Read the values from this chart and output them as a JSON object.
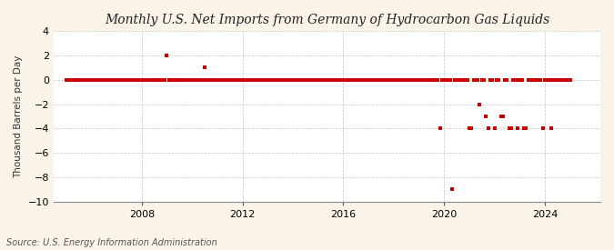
{
  "title": "U.S. Net Imports from Germany of Hydrocarbon Gas Liquids",
  "title_prefix": "Monthly ",
  "ylabel": "Thousand Barrels per Day",
  "source": "Source: U.S. Energy Information Administration",
  "background_color": "#faf3e8",
  "plot_background_color": "#ffffff",
  "marker_color": "#cc0000",
  "ylim": [
    -10,
    4
  ],
  "yticks": [
    -10,
    -8,
    -6,
    -4,
    -2,
    0,
    2,
    4
  ],
  "xlim_start": 2004.5,
  "xlim_end": 2026.2,
  "xticks": [
    2008,
    2012,
    2016,
    2020,
    2024
  ],
  "grid_color": "#aaaaaa",
  "title_fontsize": 10,
  "label_fontsize": 7.5,
  "tick_fontsize": 8,
  "source_fontsize": 7,
  "data_points": [
    [
      2005.0,
      0
    ],
    [
      2005.083,
      0
    ],
    [
      2005.167,
      0
    ],
    [
      2005.25,
      0
    ],
    [
      2005.333,
      0
    ],
    [
      2005.417,
      0
    ],
    [
      2005.5,
      0
    ],
    [
      2005.583,
      0
    ],
    [
      2005.667,
      0
    ],
    [
      2005.75,
      0
    ],
    [
      2005.833,
      0
    ],
    [
      2005.917,
      0
    ],
    [
      2006.0,
      0
    ],
    [
      2006.083,
      0
    ],
    [
      2006.167,
      0
    ],
    [
      2006.25,
      0
    ],
    [
      2006.333,
      0
    ],
    [
      2006.417,
      0
    ],
    [
      2006.5,
      0
    ],
    [
      2006.583,
      0
    ],
    [
      2006.667,
      0
    ],
    [
      2006.75,
      0
    ],
    [
      2006.833,
      0
    ],
    [
      2006.917,
      0
    ],
    [
      2007.0,
      0
    ],
    [
      2007.083,
      0
    ],
    [
      2007.167,
      0
    ],
    [
      2007.25,
      0
    ],
    [
      2007.333,
      0
    ],
    [
      2007.417,
      0
    ],
    [
      2007.5,
      0
    ],
    [
      2007.583,
      0
    ],
    [
      2007.667,
      0
    ],
    [
      2007.75,
      0
    ],
    [
      2007.833,
      0
    ],
    [
      2007.917,
      0
    ],
    [
      2008.0,
      0
    ],
    [
      2008.083,
      0
    ],
    [
      2008.167,
      0
    ],
    [
      2008.25,
      0
    ],
    [
      2008.333,
      0
    ],
    [
      2008.417,
      0
    ],
    [
      2008.5,
      0
    ],
    [
      2008.583,
      0
    ],
    [
      2008.667,
      0
    ],
    [
      2008.75,
      0
    ],
    [
      2008.833,
      0
    ],
    [
      2008.917,
      0
    ],
    [
      2009.0,
      2
    ],
    [
      2009.083,
      0
    ],
    [
      2009.167,
      0
    ],
    [
      2009.25,
      0
    ],
    [
      2009.333,
      0
    ],
    [
      2009.417,
      0
    ],
    [
      2009.5,
      0
    ],
    [
      2009.583,
      0
    ],
    [
      2009.667,
      0
    ],
    [
      2009.75,
      0
    ],
    [
      2009.833,
      0
    ],
    [
      2009.917,
      0
    ],
    [
      2010.0,
      0
    ],
    [
      2010.083,
      0
    ],
    [
      2010.167,
      0
    ],
    [
      2010.25,
      0
    ],
    [
      2010.333,
      0
    ],
    [
      2010.417,
      0
    ],
    [
      2010.5,
      1
    ],
    [
      2010.583,
      0
    ],
    [
      2010.667,
      0
    ],
    [
      2010.75,
      0
    ],
    [
      2010.833,
      0
    ],
    [
      2010.917,
      0
    ],
    [
      2011.0,
      0
    ],
    [
      2011.083,
      0
    ],
    [
      2011.167,
      0
    ],
    [
      2011.25,
      0
    ],
    [
      2011.333,
      0
    ],
    [
      2011.417,
      0
    ],
    [
      2011.5,
      0
    ],
    [
      2011.583,
      0
    ],
    [
      2011.667,
      0
    ],
    [
      2011.75,
      0
    ],
    [
      2011.833,
      0
    ],
    [
      2011.917,
      0
    ],
    [
      2012.0,
      0
    ],
    [
      2012.083,
      0
    ],
    [
      2012.167,
      0
    ],
    [
      2012.25,
      0
    ],
    [
      2012.333,
      0
    ],
    [
      2012.417,
      0
    ],
    [
      2012.5,
      0
    ],
    [
      2012.583,
      0
    ],
    [
      2012.667,
      0
    ],
    [
      2012.75,
      0
    ],
    [
      2012.833,
      0
    ],
    [
      2012.917,
      0
    ],
    [
      2013.0,
      0
    ],
    [
      2013.083,
      0
    ],
    [
      2013.167,
      0
    ],
    [
      2013.25,
      0
    ],
    [
      2013.333,
      0
    ],
    [
      2013.417,
      0
    ],
    [
      2013.5,
      0
    ],
    [
      2013.583,
      0
    ],
    [
      2013.667,
      0
    ],
    [
      2013.75,
      0
    ],
    [
      2013.833,
      0
    ],
    [
      2013.917,
      0
    ],
    [
      2014.0,
      0
    ],
    [
      2014.083,
      0
    ],
    [
      2014.167,
      0
    ],
    [
      2014.25,
      0
    ],
    [
      2014.333,
      0
    ],
    [
      2014.417,
      0
    ],
    [
      2014.5,
      0
    ],
    [
      2014.583,
      0
    ],
    [
      2014.667,
      0
    ],
    [
      2014.75,
      0
    ],
    [
      2014.833,
      0
    ],
    [
      2014.917,
      0
    ],
    [
      2015.0,
      0
    ],
    [
      2015.083,
      0
    ],
    [
      2015.167,
      0
    ],
    [
      2015.25,
      0
    ],
    [
      2015.333,
      0
    ],
    [
      2015.417,
      0
    ],
    [
      2015.5,
      0
    ],
    [
      2015.583,
      0
    ],
    [
      2015.667,
      0
    ],
    [
      2015.75,
      0
    ],
    [
      2015.833,
      0
    ],
    [
      2015.917,
      0
    ],
    [
      2016.0,
      0
    ],
    [
      2016.083,
      0
    ],
    [
      2016.167,
      0
    ],
    [
      2016.25,
      0
    ],
    [
      2016.333,
      0
    ],
    [
      2016.417,
      0
    ],
    [
      2016.5,
      0
    ],
    [
      2016.583,
      0
    ],
    [
      2016.667,
      0
    ],
    [
      2016.75,
      0
    ],
    [
      2016.833,
      0
    ],
    [
      2016.917,
      0
    ],
    [
      2017.0,
      0
    ],
    [
      2017.083,
      0
    ],
    [
      2017.167,
      0
    ],
    [
      2017.25,
      0
    ],
    [
      2017.333,
      0
    ],
    [
      2017.417,
      0
    ],
    [
      2017.5,
      0
    ],
    [
      2017.583,
      0
    ],
    [
      2017.667,
      0
    ],
    [
      2017.75,
      0
    ],
    [
      2017.833,
      0
    ],
    [
      2017.917,
      0
    ],
    [
      2018.0,
      0
    ],
    [
      2018.083,
      0
    ],
    [
      2018.167,
      0
    ],
    [
      2018.25,
      0
    ],
    [
      2018.333,
      0
    ],
    [
      2018.417,
      0
    ],
    [
      2018.5,
      0
    ],
    [
      2018.583,
      0
    ],
    [
      2018.667,
      0
    ],
    [
      2018.75,
      0
    ],
    [
      2018.833,
      0
    ],
    [
      2018.917,
      0
    ],
    [
      2019.0,
      0
    ],
    [
      2019.083,
      0
    ],
    [
      2019.167,
      0
    ],
    [
      2019.25,
      0
    ],
    [
      2019.333,
      0
    ],
    [
      2019.417,
      0
    ],
    [
      2019.5,
      0
    ],
    [
      2019.583,
      0
    ],
    [
      2019.667,
      0
    ],
    [
      2019.75,
      0
    ],
    [
      2019.833,
      -4
    ],
    [
      2019.917,
      0
    ],
    [
      2020.0,
      0
    ],
    [
      2020.083,
      0
    ],
    [
      2020.167,
      0
    ],
    [
      2020.25,
      0
    ],
    [
      2020.333,
      -9
    ],
    [
      2020.417,
      0
    ],
    [
      2020.5,
      0
    ],
    [
      2020.583,
      0
    ],
    [
      2020.667,
      0
    ],
    [
      2020.75,
      0
    ],
    [
      2020.833,
      0
    ],
    [
      2020.917,
      0
    ],
    [
      2021.0,
      -4
    ],
    [
      2021.083,
      -4
    ],
    [
      2021.167,
      0
    ],
    [
      2021.25,
      0
    ],
    [
      2021.333,
      0
    ],
    [
      2021.417,
      -2
    ],
    [
      2021.5,
      0
    ],
    [
      2021.583,
      0
    ],
    [
      2021.667,
      -3
    ],
    [
      2021.75,
      -4
    ],
    [
      2021.833,
      0
    ],
    [
      2021.917,
      0
    ],
    [
      2022.0,
      -4
    ],
    [
      2022.083,
      0
    ],
    [
      2022.167,
      0
    ],
    [
      2022.25,
      -3
    ],
    [
      2022.333,
      -3
    ],
    [
      2022.417,
      0
    ],
    [
      2022.5,
      0
    ],
    [
      2022.583,
      -4
    ],
    [
      2022.667,
      -4
    ],
    [
      2022.75,
      0
    ],
    [
      2022.833,
      0
    ],
    [
      2022.917,
      -4
    ],
    [
      2023.0,
      0
    ],
    [
      2023.083,
      0
    ],
    [
      2023.167,
      -4
    ],
    [
      2023.25,
      -4
    ],
    [
      2023.333,
      0
    ],
    [
      2023.417,
      0
    ],
    [
      2023.5,
      0
    ],
    [
      2023.583,
      0
    ],
    [
      2023.667,
      0
    ],
    [
      2023.75,
      0
    ],
    [
      2023.833,
      0
    ],
    [
      2023.917,
      -4
    ],
    [
      2024.0,
      0
    ],
    [
      2024.083,
      0
    ],
    [
      2024.167,
      0
    ],
    [
      2024.25,
      -4
    ],
    [
      2024.333,
      0
    ],
    [
      2024.417,
      0
    ],
    [
      2024.5,
      0
    ],
    [
      2024.583,
      0
    ],
    [
      2024.667,
      0
    ],
    [
      2024.75,
      0
    ],
    [
      2024.833,
      0
    ],
    [
      2024.917,
      0
    ],
    [
      2025.0,
      0
    ]
  ]
}
